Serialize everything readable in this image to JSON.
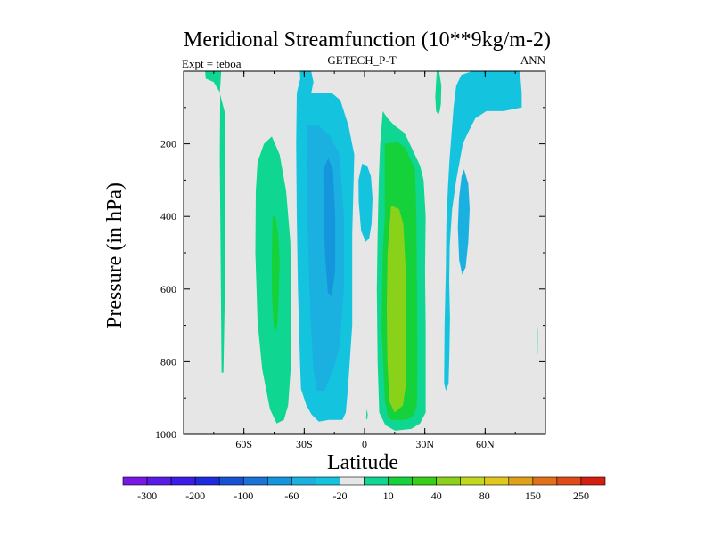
{
  "chart_data": {
    "type": "contour",
    "title": "Meridional Streamfunction (10**9kg/m-2)",
    "left_subtitle": "Expt = teboa",
    "center_subtitle": "GETECH_P-T",
    "right_subtitle": "ANN",
    "xlabel": "Latitude",
    "ylabel": "Pressure (in hPa)",
    "xlim": [
      -90,
      90
    ],
    "ylim": [
      1000,
      0
    ],
    "xticks": [
      {
        "value": -60,
        "label": "60S"
      },
      {
        "value": -30,
        "label": "30S"
      },
      {
        "value": 0,
        "label": "0"
      },
      {
        "value": 30,
        "label": "30N"
      },
      {
        "value": 60,
        "label": "60N"
      }
    ],
    "yticks": [
      {
        "value": 200,
        "label": "200"
      },
      {
        "value": 400,
        "label": "400"
      },
      {
        "value": 600,
        "label": "600"
      },
      {
        "value": 800,
        "label": "800"
      },
      {
        "value": 1000,
        "label": "1000"
      }
    ],
    "colorbar": {
      "colors": [
        "#7a17e6",
        "#5a1ae8",
        "#3b1ce9",
        "#1d2be0",
        "#1752d6",
        "#1a74d8",
        "#1595db",
        "#1ab0e0",
        "#14c4de",
        "#e6e6e6",
        "#0fd690",
        "#16d23a",
        "#36cf16",
        "#8ad21a",
        "#c1d81c",
        "#e2c81c",
        "#e0a01a",
        "#e1701a",
        "#df4a18",
        "#d71c10"
      ],
      "labels": [
        {
          "after_index": 0,
          "label": "-300"
        },
        {
          "after_index": 2,
          "label": "-200"
        },
        {
          "after_index": 4,
          "label": "-100"
        },
        {
          "after_index": 6,
          "label": "-60"
        },
        {
          "after_index": 8,
          "label": "-20"
        },
        {
          "after_index": 10,
          "label": "10"
        },
        {
          "after_index": 12,
          "label": "40"
        },
        {
          "after_index": 14,
          "label": "80"
        },
        {
          "after_index": 16,
          "label": "150"
        },
        {
          "after_index": 18,
          "label": "250"
        }
      ]
    },
    "background_color": "#e6e6e6",
    "regions": [
      {
        "name": "southern-polar-thin-cell",
        "level": 10,
        "color": "#0fd690",
        "points": [
          [
            -79.3,
            0
          ],
          [
            -71.3,
            0
          ],
          [
            -72,
            60
          ],
          [
            -69.2,
            120
          ],
          [
            -69.2,
            280
          ],
          [
            -69.6,
            500
          ],
          [
            -69.6,
            650
          ],
          [
            -70.2,
            830
          ],
          [
            -71.1,
            830
          ],
          [
            -71.6,
            500
          ],
          [
            -72,
            240
          ],
          [
            -71.8,
            60
          ],
          [
            -75,
            30
          ],
          [
            -79,
            20
          ]
        ]
      },
      {
        "name": "southern-ferrel-cell-outer",
        "level": 10,
        "color": "#0fd690",
        "points": [
          [
            -53.2,
            250
          ],
          [
            -50,
            200
          ],
          [
            -46.1,
            180
          ],
          [
            -42.2,
            230
          ],
          [
            -39,
            330
          ],
          [
            -36.9,
            470
          ],
          [
            -36.5,
            630
          ],
          [
            -36.5,
            800
          ],
          [
            -38,
            920
          ],
          [
            -40.1,
            960
          ],
          [
            -43.7,
            970
          ],
          [
            -47.1,
            930
          ],
          [
            -50.9,
            820
          ],
          [
            -53.2,
            690
          ],
          [
            -54.3,
            500
          ],
          [
            -54.1,
            330
          ]
        ]
      },
      {
        "name": "southern-ferrel-cell-core",
        "level": 40,
        "color": "#16d23a",
        "points": [
          [
            -45.7,
            400
          ],
          [
            -44.3,
            400
          ],
          [
            -42.9,
            450
          ],
          [
            -42.2,
            520
          ],
          [
            -42.6,
            600
          ],
          [
            -43.2,
            690
          ],
          [
            -44.3,
            720
          ],
          [
            -45.2,
            700
          ],
          [
            -46.1,
            610
          ],
          [
            -46.1,
            500
          ]
        ]
      },
      {
        "name": "southern-hadley-cell-outer",
        "level": -20,
        "color": "#14c4de",
        "points": [
          [
            -31.1,
            0
          ],
          [
            -26.5,
            0
          ],
          [
            -25.4,
            30
          ],
          [
            -26.5,
            60
          ],
          [
            -21.4,
            60
          ],
          [
            -16.3,
            60
          ],
          [
            -12,
            80
          ],
          [
            -8,
            150
          ],
          [
            -5.1,
            230
          ],
          [
            -6.1,
            450
          ],
          [
            -6.1,
            700
          ],
          [
            -8.2,
            870
          ],
          [
            -9.3,
            940
          ],
          [
            -11,
            960
          ],
          [
            -17.7,
            960
          ],
          [
            -22.7,
            965
          ],
          [
            -26.4,
            945
          ],
          [
            -28.9,
            920
          ],
          [
            -31.6,
            875
          ],
          [
            -32.1,
            800
          ],
          [
            -33.1,
            600
          ],
          [
            -33.7,
            400
          ],
          [
            -34,
            200
          ],
          [
            -33.7,
            60
          ]
        ]
      },
      {
        "name": "southern-hadley-cell-mid",
        "level": -60,
        "color": "#1ab0e0",
        "points": [
          [
            -28.4,
            150
          ],
          [
            -22.9,
            150
          ],
          [
            -16.9,
            180
          ],
          [
            -12.4,
            230
          ],
          [
            -10.3,
            400
          ],
          [
            -10.3,
            600
          ],
          [
            -12.4,
            760
          ],
          [
            -15.5,
            820
          ],
          [
            -19.9,
            880
          ],
          [
            -23.7,
            880
          ],
          [
            -25.5,
            820
          ],
          [
            -27.1,
            650
          ],
          [
            -28.2,
            450
          ],
          [
            -28.9,
            250
          ]
        ]
      },
      {
        "name": "southern-hadley-cell-core",
        "level": -100,
        "color": "#1595db",
        "points": [
          [
            -20.5,
            270
          ],
          [
            -18.1,
            240
          ],
          [
            -15.7,
            270
          ],
          [
            -14.6,
            400
          ],
          [
            -14.6,
            550
          ],
          [
            -16.3,
            620
          ],
          [
            -18.2,
            610
          ],
          [
            -19.6,
            510
          ],
          [
            -20.3,
            400
          ]
        ]
      },
      {
        "name": "equatorial-negative-blob",
        "level": -20,
        "color": "#14c4de",
        "points": [
          [
            -1.2,
            255
          ],
          [
            1.3,
            260
          ],
          [
            3.2,
            290
          ],
          [
            4,
            350
          ],
          [
            3.5,
            420
          ],
          [
            2.3,
            460
          ],
          [
            0.6,
            470
          ],
          [
            -1.7,
            440
          ],
          [
            -2.9,
            360
          ],
          [
            -3,
            300
          ]
        ]
      },
      {
        "name": "equatorial-small-blob",
        "level": 10,
        "color": "#0fd690",
        "points": [
          [
            1.1,
            930
          ],
          [
            1.6,
            945
          ],
          [
            1.3,
            960
          ],
          [
            0.8,
            955
          ]
        ]
      },
      {
        "name": "northern-hadley-cell-outer",
        "level": 10,
        "color": "#0fd690",
        "points": [
          [
            9.1,
            110
          ],
          [
            11.5,
            130
          ],
          [
            15,
            150
          ],
          [
            19.9,
            170
          ],
          [
            22.5,
            200
          ],
          [
            27.6,
            260
          ],
          [
            29.4,
            300
          ],
          [
            30.4,
            400
          ],
          [
            30.1,
            550
          ],
          [
            30.4,
            700
          ],
          [
            30.4,
            860
          ],
          [
            30.4,
            940
          ],
          [
            27.6,
            970
          ],
          [
            23.3,
            985
          ],
          [
            15.2,
            990
          ],
          [
            10.4,
            975
          ],
          [
            7.3,
            940
          ],
          [
            6.5,
            800
          ],
          [
            6.1,
            600
          ],
          [
            6.5,
            450
          ],
          [
            7.1,
            300
          ],
          [
            7.8,
            200
          ]
        ]
      },
      {
        "name": "northern-hadley-cell-mid",
        "level": 40,
        "color": "#16d23a",
        "points": [
          [
            10.1,
            200
          ],
          [
            16.5,
            195
          ],
          [
            20.2,
            210
          ],
          [
            25.1,
            270
          ],
          [
            25.8,
            400
          ],
          [
            26.1,
            600
          ],
          [
            26.3,
            800
          ],
          [
            26.1,
            920
          ],
          [
            24.2,
            950
          ],
          [
            20.6,
            960
          ],
          [
            13.4,
            960
          ],
          [
            11.6,
            950
          ],
          [
            10,
            900
          ],
          [
            8.5,
            700
          ],
          [
            9.1,
            500
          ],
          [
            10.1,
            400
          ]
        ]
      },
      {
        "name": "northern-hadley-cell-inner",
        "level": 80,
        "color": "#8ad21a",
        "points": [
          [
            13.2,
            370
          ],
          [
            17.2,
            380
          ],
          [
            19.3,
            420
          ],
          [
            20.6,
            560
          ],
          [
            20.7,
            700
          ],
          [
            20.4,
            870
          ],
          [
            19.1,
            920
          ],
          [
            15,
            940
          ],
          [
            12.4,
            910
          ],
          [
            11.4,
            800
          ],
          [
            11.1,
            650
          ],
          [
            11.5,
            500
          ]
        ]
      },
      {
        "name": "northern-midlatitude-cell",
        "level": -20,
        "color": "#14c4de",
        "points": [
          [
            44.3,
            100
          ],
          [
            45.6,
            40
          ],
          [
            48.2,
            10
          ],
          [
            53.6,
            0
          ],
          [
            77.3,
            0
          ],
          [
            78.2,
            60
          ],
          [
            78.2,
            100
          ],
          [
            69.1,
            110
          ],
          [
            60.6,
            110
          ],
          [
            55.1,
            130
          ],
          [
            51.4,
            170
          ],
          [
            48.9,
            200
          ],
          [
            45.6,
            300
          ],
          [
            43.6,
            380
          ],
          [
            42.4,
            480
          ],
          [
            42.1,
            580
          ],
          [
            42.5,
            680
          ],
          [
            42.2,
            780
          ],
          [
            41.8,
            860
          ],
          [
            40.5,
            880
          ],
          [
            39.6,
            860
          ],
          [
            39.8,
            700
          ],
          [
            40.5,
            540
          ],
          [
            40.7,
            420
          ],
          [
            41.5,
            320
          ],
          [
            42.2,
            250
          ],
          [
            43.2,
            180
          ]
        ]
      },
      {
        "name": "northern-midlatitude-core",
        "level": -60,
        "color": "#1ab0e0",
        "points": [
          [
            49.5,
            270
          ],
          [
            51.6,
            310
          ],
          [
            52.3,
            380
          ],
          [
            51.6,
            470
          ],
          [
            50.3,
            540
          ],
          [
            48.6,
            560
          ],
          [
            47.1,
            520
          ],
          [
            46.4,
            430
          ],
          [
            47,
            350
          ],
          [
            48.3,
            290
          ]
        ]
      },
      {
        "name": "northern-subtropical-streak",
        "level": 10,
        "color": "#0fd690",
        "points": [
          [
            35.9,
            0
          ],
          [
            37.1,
            0
          ],
          [
            38.2,
            40
          ],
          [
            38,
            90
          ],
          [
            37.4,
            110
          ],
          [
            36.8,
            120
          ],
          [
            35.6,
            110
          ],
          [
            35.2,
            70
          ]
        ]
      },
      {
        "name": "north-polar-streak",
        "level": 10,
        "color": "#0fd690",
        "points": [
          [
            85.6,
            700
          ],
          [
            85.9,
            690
          ],
          [
            86.2,
            720
          ],
          [
            86.1,
            780
          ],
          [
            85.7,
            780
          ],
          [
            85.6,
            740
          ]
        ]
      },
      {
        "name": "top-left-blue-lobe",
        "level": -20,
        "color": "#14c4de",
        "points": [
          [
            -32.2,
            0
          ],
          [
            -29.6,
            0
          ],
          [
            -29.8,
            30
          ],
          [
            -30.6,
            60
          ],
          [
            -31.8,
            40
          ]
        ]
      }
    ]
  }
}
